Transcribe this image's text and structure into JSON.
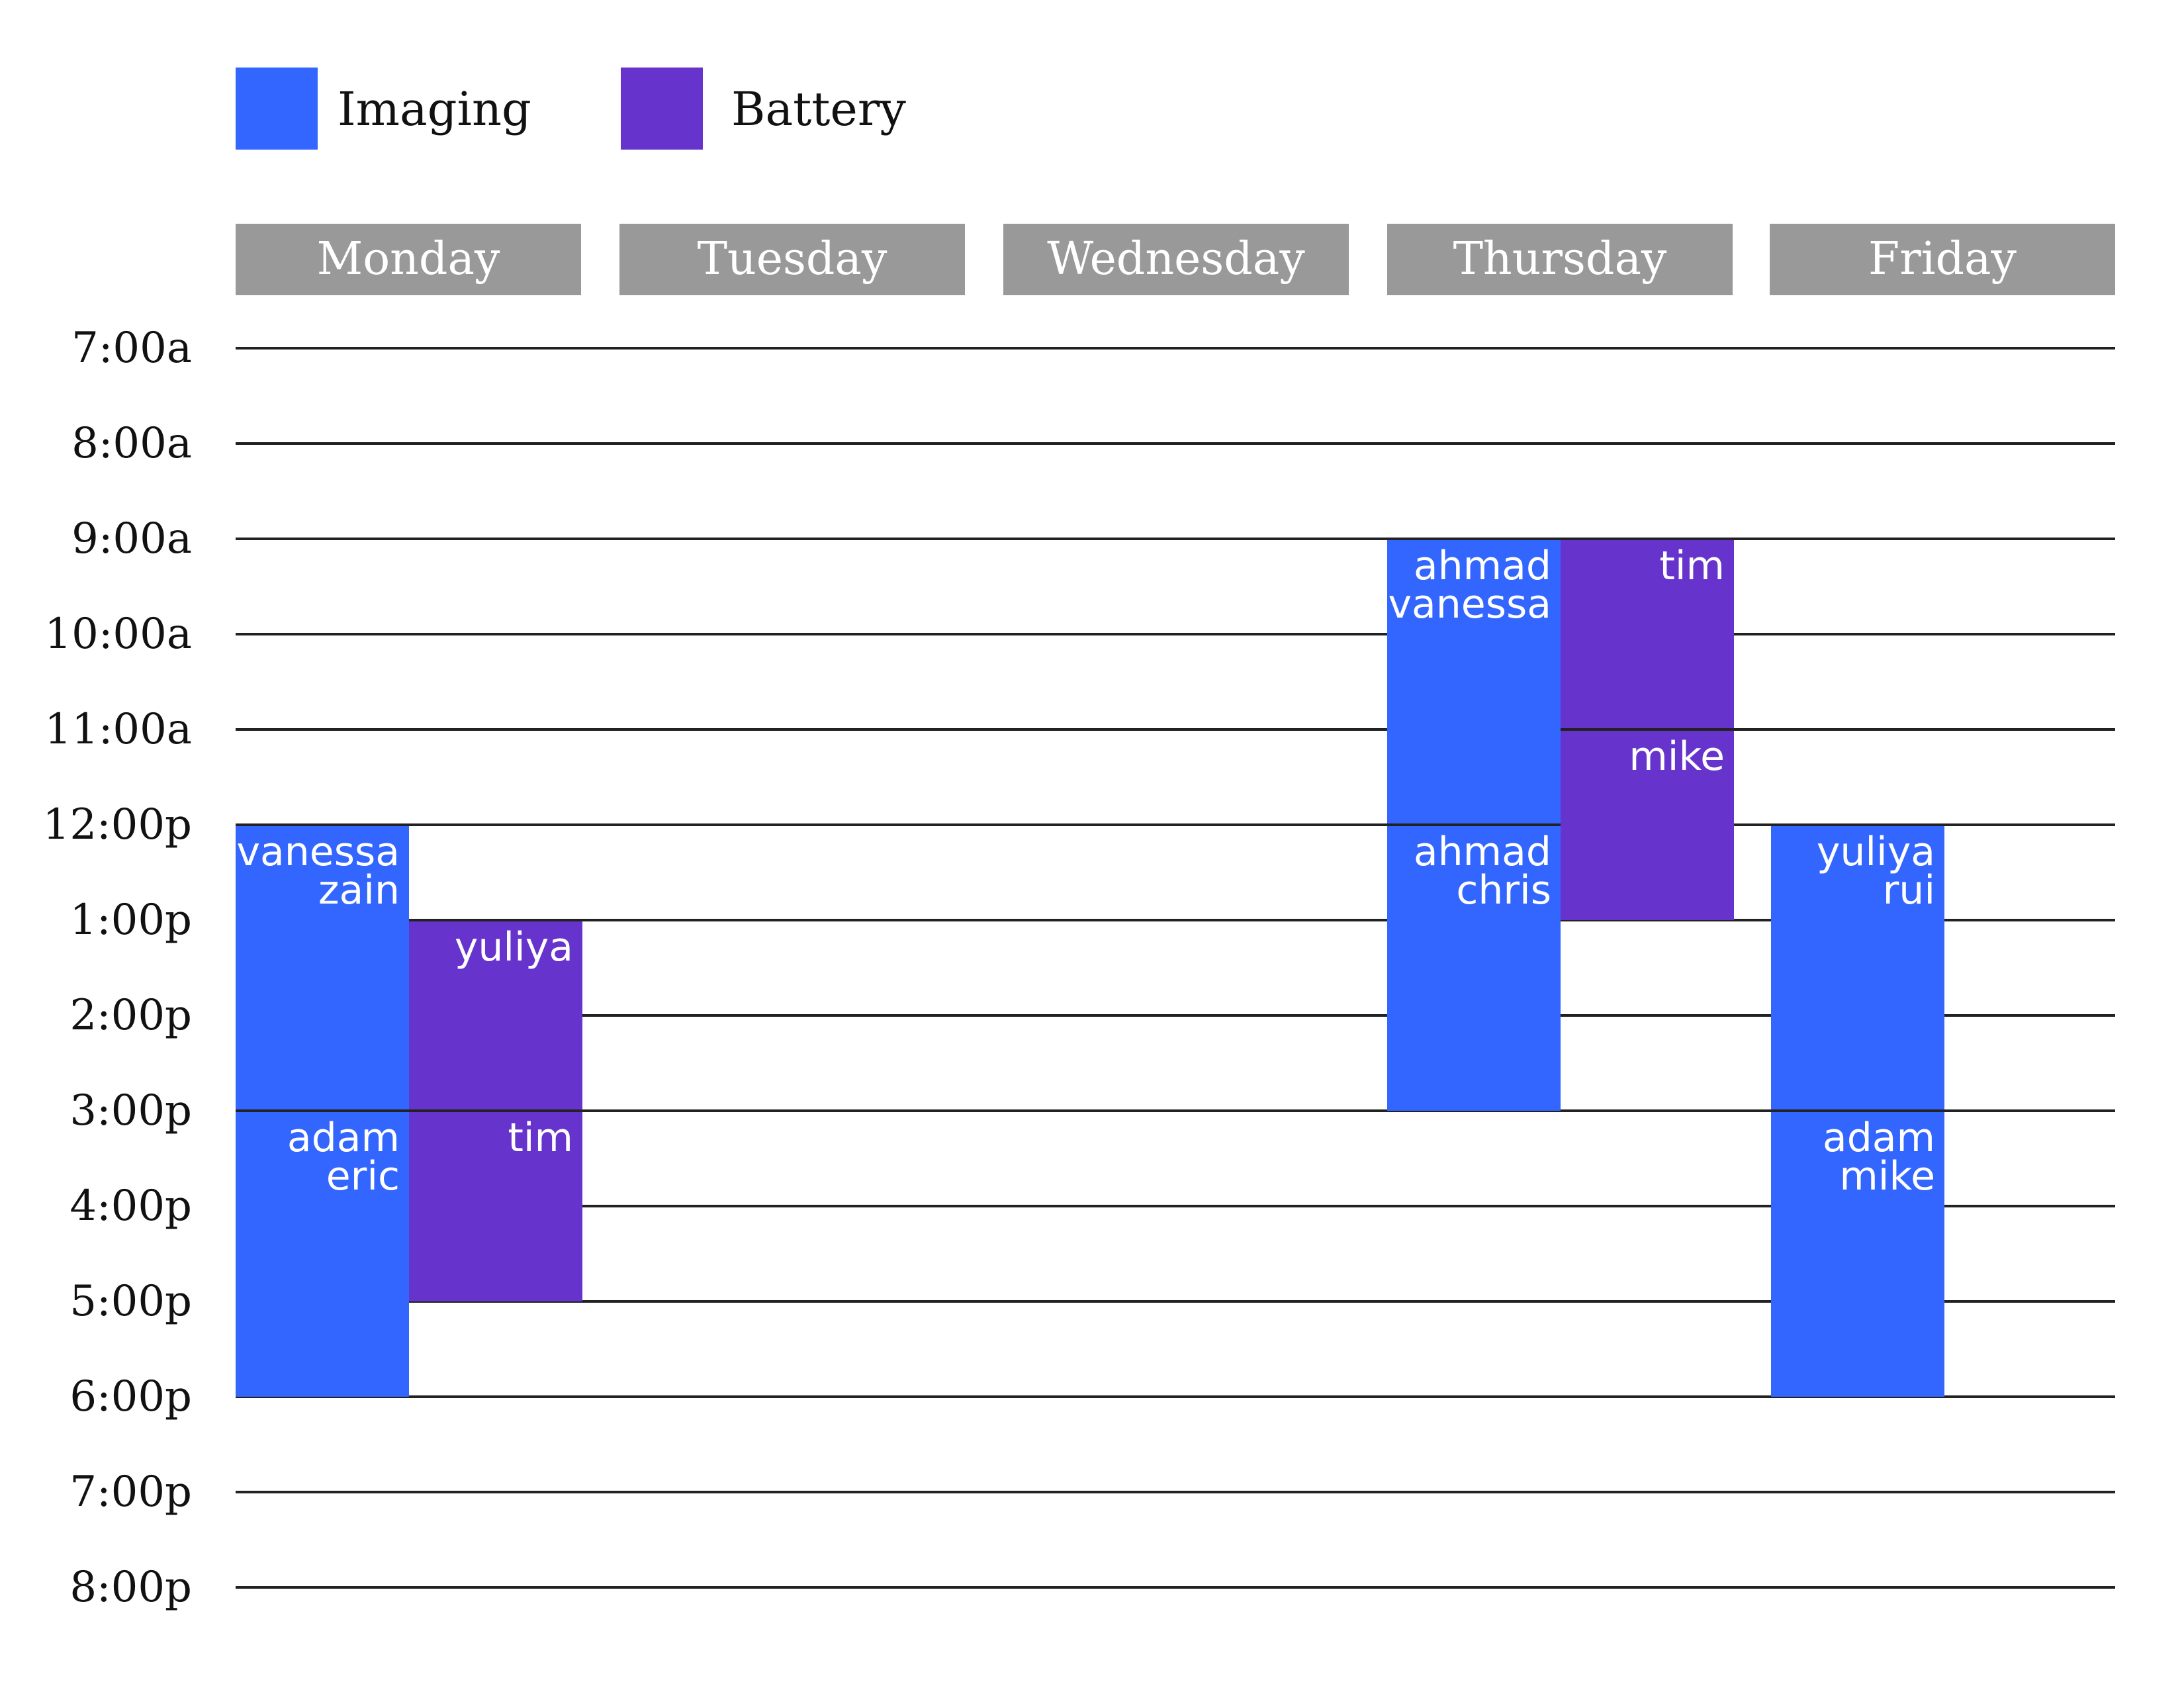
{
  "legend": {
    "imaging": {
      "label": "Imaging",
      "color": "#3366ff"
    },
    "battery": {
      "label": "Battery",
      "color": "#6633cc"
    }
  },
  "days": [
    "Monday",
    "Tuesday",
    "Wednesday",
    "Thursday",
    "Friday"
  ],
  "hours": [
    "7:00a",
    "8:00a",
    "9:00a",
    "10:00a",
    "11:00a",
    "12:00p",
    "1:00p",
    "2:00p",
    "3:00p",
    "4:00p",
    "5:00p",
    "6:00p",
    "7:00p",
    "8:00p"
  ],
  "sessions": [
    {
      "day": "Monday",
      "type": "imaging",
      "start": "12:00p",
      "end": "3:00p",
      "people": "vanessa\nzain"
    },
    {
      "day": "Monday",
      "type": "imaging",
      "start": "3:00p",
      "end": "6:00p",
      "people": "adam\neric"
    },
    {
      "day": "Monday",
      "type": "battery",
      "start": "1:00p",
      "end": "3:00p",
      "people": "yuliya"
    },
    {
      "day": "Monday",
      "type": "battery",
      "start": "3:00p",
      "end": "5:00p",
      "people": "tim"
    },
    {
      "day": "Thursday",
      "type": "imaging",
      "start": "9:00a",
      "end": "12:00p",
      "people": "ahmad\nvanessa"
    },
    {
      "day": "Thursday",
      "type": "imaging",
      "start": "12:00p",
      "end": "3:00p",
      "people": "ahmad\nchris"
    },
    {
      "day": "Thursday",
      "type": "battery",
      "start": "9:00a",
      "end": "11:00a",
      "people": "tim"
    },
    {
      "day": "Thursday",
      "type": "battery",
      "start": "11:00a",
      "end": "1:00p",
      "people": "mike"
    },
    {
      "day": "Friday",
      "type": "imaging",
      "start": "12:00p",
      "end": "3:00p",
      "people": "yuliya\nrui"
    },
    {
      "day": "Friday",
      "type": "imaging",
      "start": "3:00p",
      "end": "6:00p",
      "people": "adam\nmike"
    }
  ]
}
